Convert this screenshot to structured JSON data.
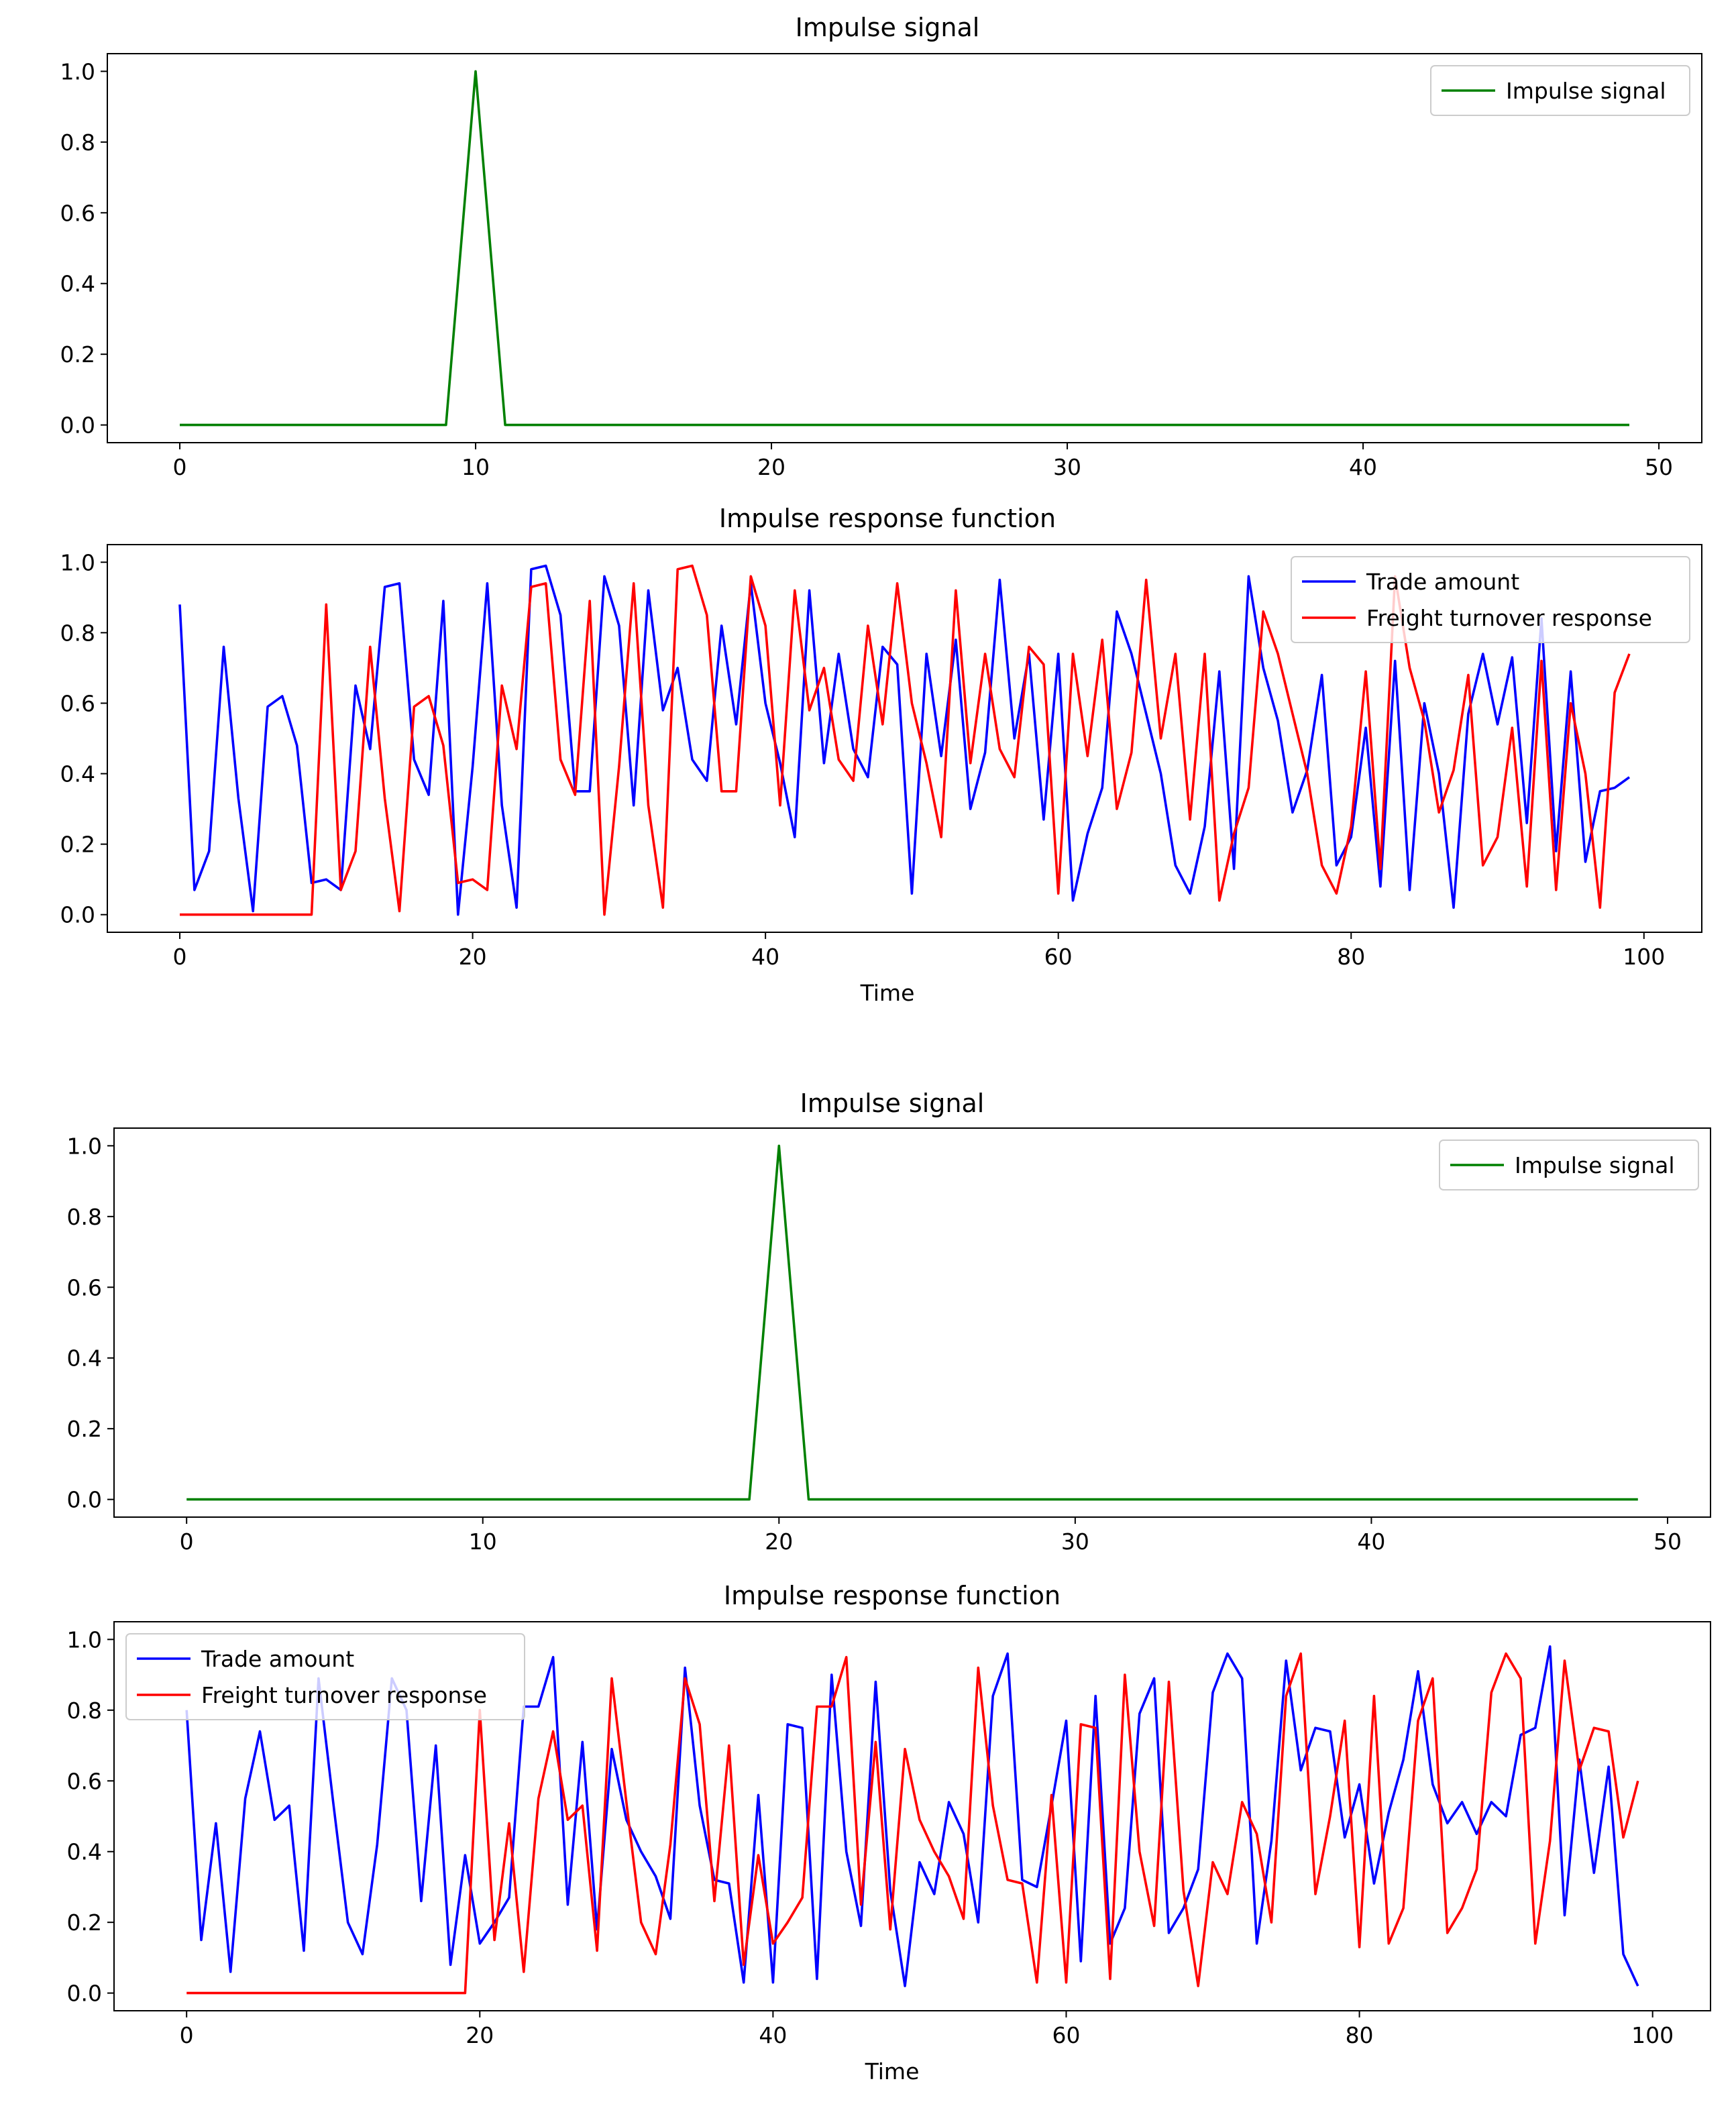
{
  "figure": {
    "background": "#ffffff"
  },
  "colors": {
    "impulse": "#008000",
    "trade": "#0000ff",
    "freight": "#ff0000",
    "axis": "#000000",
    "legend_border": "#cccccc"
  },
  "chart_data": [
    {
      "id": "top-impulse",
      "type": "line",
      "title": "Impulse signal",
      "xlabel": "",
      "ylabel": "",
      "xlim": [
        -2.45,
        51.45
      ],
      "ylim": [
        -0.05,
        1.05
      ],
      "xticks": [
        0,
        10,
        20,
        30,
        40,
        50
      ],
      "yticks": [
        0.0,
        0.2,
        0.4,
        0.6,
        0.8,
        1.0
      ],
      "legend_position": "top-right",
      "series": [
        {
          "name": "Impulse signal",
          "color": "#008000",
          "x": [
            0,
            9,
            10,
            11,
            49
          ],
          "y": [
            0,
            0,
            1,
            0,
            0
          ]
        }
      ]
    },
    {
      "id": "top-response",
      "type": "line",
      "title": "Impulse response function",
      "xlabel": "Time",
      "ylabel": "",
      "xlim": [
        -4.95,
        103.95
      ],
      "ylim": [
        -0.05,
        1.05
      ],
      "xticks": [
        0,
        20,
        40,
        60,
        80,
        100
      ],
      "yticks": [
        0.0,
        0.2,
        0.4,
        0.6,
        0.8,
        1.0
      ],
      "legend_position": "top-right",
      "series": [
        {
          "name": "Trade amount",
          "color": "#0000ff",
          "x": [
            0,
            1,
            2,
            3,
            4,
            5,
            6,
            7,
            8,
            9,
            10,
            11,
            12,
            13,
            14,
            15,
            16,
            17,
            18,
            19,
            20,
            21,
            22,
            23,
            24,
            25,
            26,
            27,
            28,
            29,
            30,
            31,
            32,
            33,
            34,
            35,
            36,
            37,
            38,
            39,
            40,
            41,
            42,
            43,
            44,
            45,
            46,
            47,
            48,
            49,
            50,
            51,
            52,
            53,
            54,
            55,
            56,
            57,
            58,
            59,
            60,
            61,
            62,
            63,
            64,
            65,
            66,
            67,
            68,
            69,
            70,
            71,
            72,
            73,
            74,
            75,
            76,
            77,
            78,
            79,
            80,
            81,
            82,
            83,
            84,
            85,
            86,
            87,
            88,
            89,
            90,
            91,
            92,
            93,
            94,
            95,
            96,
            97,
            98,
            99
          ],
          "y": [
            0.88,
            0.07,
            0.18,
            0.76,
            0.33,
            0.01,
            0.59,
            0.62,
            0.48,
            0.09,
            0.1,
            0.07,
            0.65,
            0.47,
            0.93,
            0.94,
            0.44,
            0.34,
            0.89,
            0.0,
            0.42,
            0.94,
            0.31,
            0.02,
            0.98,
            0.99,
            0.85,
            0.35,
            0.35,
            0.96,
            0.82,
            0.31,
            0.92,
            0.58,
            0.7,
            0.44,
            0.38,
            0.82,
            0.54,
            0.94,
            0.6,
            0.43,
            0.22,
            0.92,
            0.43,
            0.74,
            0.47,
            0.39,
            0.76,
            0.71,
            0.06,
            0.74,
            0.45,
            0.78,
            0.3,
            0.46,
            0.95,
            0.5,
            0.74,
            0.27,
            0.74,
            0.04,
            0.23,
            0.36,
            0.86,
            0.74,
            0.57,
            0.4,
            0.14,
            0.06,
            0.25,
            0.69,
            0.13,
            0.96,
            0.7,
            0.55,
            0.29,
            0.41,
            0.68,
            0.14,
            0.22,
            0.53,
            0.08,
            0.72,
            0.07,
            0.6,
            0.4,
            0.02,
            0.57,
            0.74,
            0.54,
            0.73,
            0.26,
            0.84,
            0.18,
            0.69,
            0.15,
            0.35,
            0.36,
            0.39
          ]
        },
        {
          "name": "Freight turnover response",
          "color": "#ff0000",
          "x": [
            0,
            1,
            2,
            3,
            4,
            5,
            6,
            7,
            8,
            9,
            10,
            11,
            12,
            13,
            14,
            15,
            16,
            17,
            18,
            19,
            20,
            21,
            22,
            23,
            24,
            25,
            26,
            27,
            28,
            29,
            30,
            31,
            32,
            33,
            34,
            35,
            36,
            37,
            38,
            39,
            40,
            41,
            42,
            43,
            44,
            45,
            46,
            47,
            48,
            49,
            50,
            51,
            52,
            53,
            54,
            55,
            56,
            57,
            58,
            59,
            60,
            61,
            62,
            63,
            64,
            65,
            66,
            67,
            68,
            69,
            70,
            71,
            72,
            73,
            74,
            75,
            76,
            77,
            78,
            79,
            80,
            81,
            82,
            83,
            84,
            85,
            86,
            87,
            88,
            89,
            90,
            91,
            92,
            93,
            94,
            95,
            96,
            97,
            98,
            99
          ],
          "y": [
            0,
            0,
            0,
            0,
            0,
            0,
            0,
            0,
            0,
            0,
            0.88,
            0.07,
            0.18,
            0.76,
            0.33,
            0.01,
            0.59,
            0.62,
            0.48,
            0.09,
            0.1,
            0.07,
            0.65,
            0.47,
            0.93,
            0.94,
            0.44,
            0.34,
            0.89,
            0.0,
            0.42,
            0.94,
            0.31,
            0.02,
            0.98,
            0.99,
            0.85,
            0.35,
            0.35,
            0.96,
            0.82,
            0.31,
            0.92,
            0.58,
            0.7,
            0.44,
            0.38,
            0.82,
            0.54,
            0.94,
            0.6,
            0.43,
            0.22,
            0.92,
            0.43,
            0.74,
            0.47,
            0.39,
            0.76,
            0.71,
            0.06,
            0.74,
            0.45,
            0.78,
            0.3,
            0.46,
            0.95,
            0.5,
            0.74,
            0.27,
            0.74,
            0.04,
            0.23,
            0.36,
            0.86,
            0.74,
            0.57,
            0.4,
            0.14,
            0.06,
            0.25,
            0.69,
            0.13,
            0.96,
            0.7,
            0.55,
            0.29,
            0.41,
            0.68,
            0.14,
            0.22,
            0.53,
            0.08,
            0.72,
            0.07,
            0.6,
            0.4,
            0.02,
            0.63,
            0.74
          ]
        }
      ]
    },
    {
      "id": "bottom-impulse",
      "type": "line",
      "title": "Impulse signal",
      "xlabel": "",
      "ylabel": "",
      "xlim": [
        -2.45,
        51.45
      ],
      "ylim": [
        -0.05,
        1.05
      ],
      "xticks": [
        0,
        10,
        20,
        30,
        40,
        50
      ],
      "yticks": [
        0.0,
        0.2,
        0.4,
        0.6,
        0.8,
        1.0
      ],
      "legend_position": "top-right",
      "series": [
        {
          "name": "Impulse signal",
          "color": "#008000",
          "x": [
            0,
            19,
            20,
            21,
            49
          ],
          "y": [
            0,
            0,
            1,
            0,
            0
          ]
        }
      ]
    },
    {
      "id": "bottom-response",
      "type": "line",
      "title": "Impulse response function",
      "xlabel": "Time",
      "ylabel": "",
      "xlim": [
        -4.95,
        103.95
      ],
      "ylim": [
        -0.05,
        1.05
      ],
      "xticks": [
        0,
        20,
        40,
        60,
        80,
        100
      ],
      "yticks": [
        0.0,
        0.2,
        0.4,
        0.6,
        0.8,
        1.0
      ],
      "legend_position": "top-left",
      "series": [
        {
          "name": "Trade amount",
          "color": "#0000ff",
          "x": [
            0,
            1,
            2,
            3,
            4,
            5,
            6,
            7,
            8,
            9,
            10,
            11,
            12,
            13,
            14,
            15,
            16,
            17,
            18,
            19,
            20,
            21,
            22,
            23,
            24,
            25,
            26,
            27,
            28,
            29,
            30,
            31,
            32,
            33,
            34,
            35,
            36,
            37,
            38,
            39,
            40,
            41,
            42,
            43,
            44,
            45,
            46,
            47,
            48,
            49,
            50,
            51,
            52,
            53,
            54,
            55,
            56,
            57,
            58,
            59,
            60,
            61,
            62,
            63,
            64,
            65,
            66,
            67,
            68,
            69,
            70,
            71,
            72,
            73,
            74,
            75,
            76,
            77,
            78,
            79,
            80,
            81,
            82,
            83,
            84,
            85,
            86,
            87,
            88,
            89,
            90,
            91,
            92,
            93,
            94,
            95,
            96,
            97,
            98,
            99
          ],
          "y": [
            0.8,
            0.15,
            0.48,
            0.06,
            0.55,
            0.74,
            0.49,
            0.53,
            0.12,
            0.89,
            0.54,
            0.2,
            0.11,
            0.42,
            0.89,
            0.8,
            0.26,
            0.7,
            0.08,
            0.39,
            0.14,
            0.2,
            0.27,
            0.81,
            0.81,
            0.95,
            0.25,
            0.71,
            0.18,
            0.69,
            0.49,
            0.4,
            0.33,
            0.21,
            0.92,
            0.53,
            0.32,
            0.31,
            0.03,
            0.56,
            0.03,
            0.76,
            0.75,
            0.04,
            0.9,
            0.4,
            0.19,
            0.88,
            0.29,
            0.02,
            0.37,
            0.28,
            0.54,
            0.45,
            0.2,
            0.84,
            0.96,
            0.32,
            0.3,
            0.53,
            0.77,
            0.09,
            0.84,
            0.14,
            0.24,
            0.79,
            0.89,
            0.17,
            0.24,
            0.35,
            0.85,
            0.96,
            0.89,
            0.14,
            0.43,
            0.94,
            0.63,
            0.75,
            0.74,
            0.44,
            0.59,
            0.31,
            0.51,
            0.66,
            0.91,
            0.59,
            0.48,
            0.54,
            0.45,
            0.54,
            0.5,
            0.73,
            0.75,
            0.98,
            0.22,
            0.66,
            0.34,
            0.64,
            0.11,
            0.02
          ]
        },
        {
          "name": "Freight turnover response",
          "color": "#ff0000",
          "x": [
            0,
            1,
            2,
            3,
            4,
            5,
            6,
            7,
            8,
            9,
            10,
            11,
            12,
            13,
            14,
            15,
            16,
            17,
            18,
            19,
            20,
            21,
            22,
            23,
            24,
            25,
            26,
            27,
            28,
            29,
            30,
            31,
            32,
            33,
            34,
            35,
            36,
            37,
            38,
            39,
            40,
            41,
            42,
            43,
            44,
            45,
            46,
            47,
            48,
            49,
            50,
            51,
            52,
            53,
            54,
            55,
            56,
            57,
            58,
            59,
            60,
            61,
            62,
            63,
            64,
            65,
            66,
            67,
            68,
            69,
            70,
            71,
            72,
            73,
            74,
            75,
            76,
            77,
            78,
            79,
            80,
            81,
            82,
            83,
            84,
            85,
            86,
            87,
            88,
            89,
            90,
            91,
            92,
            93,
            94,
            95,
            96,
            97,
            98,
            99
          ],
          "y": [
            0,
            0,
            0,
            0,
            0,
            0,
            0,
            0,
            0,
            0,
            0,
            0,
            0,
            0,
            0,
            0,
            0,
            0,
            0,
            0,
            0.8,
            0.15,
            0.48,
            0.06,
            0.55,
            0.74,
            0.49,
            0.53,
            0.12,
            0.89,
            0.54,
            0.2,
            0.11,
            0.42,
            0.89,
            0.76,
            0.26,
            0.7,
            0.08,
            0.39,
            0.14,
            0.2,
            0.27,
            0.81,
            0.81,
            0.95,
            0.25,
            0.71,
            0.18,
            0.69,
            0.49,
            0.4,
            0.33,
            0.21,
            0.92,
            0.53,
            0.32,
            0.31,
            0.03,
            0.56,
            0.03,
            0.76,
            0.75,
            0.04,
            0.9,
            0.4,
            0.19,
            0.88,
            0.29,
            0.02,
            0.37,
            0.28,
            0.54,
            0.45,
            0.2,
            0.84,
            0.96,
            0.28,
            0.5,
            0.77,
            0.13,
            0.84,
            0.14,
            0.24,
            0.77,
            0.89,
            0.17,
            0.24,
            0.35,
            0.85,
            0.96,
            0.89,
            0.14,
            0.43,
            0.94,
            0.63,
            0.75,
            0.74,
            0.44,
            0.6
          ]
        }
      ]
    }
  ]
}
